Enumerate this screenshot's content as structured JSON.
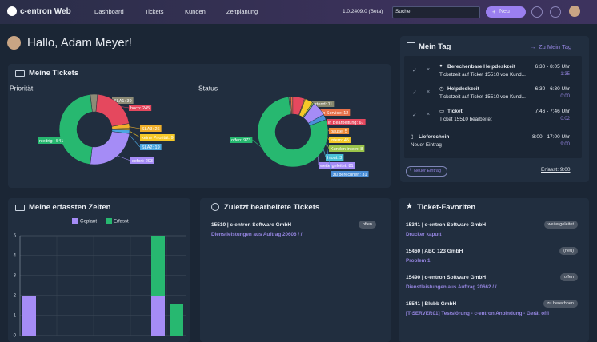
{
  "nav": {
    "brand": "c-entron Web",
    "items": [
      "Dashboard",
      "Tickets",
      "Kunden",
      "Zeitplanung"
    ],
    "version": "1.0.2409.0 (Beta)",
    "search": "Suche",
    "new_button": "Neu"
  },
  "greeting": "Hallo, Adam Meyer!",
  "tickets_panel": {
    "title": "Meine Tickets"
  },
  "times_panel": {
    "title": "Meine erfassten Zeiten"
  },
  "chart_data": [
    {
      "type": "donut",
      "title": "Priorität",
      "categories": [
        "SLA1",
        "hoch",
        "SLA3",
        "keine Priorität",
        "SLA2",
        "sofort",
        "niedrig"
      ],
      "values": [
        39,
        245,
        26,
        9,
        19,
        293,
        541
      ],
      "value_labels": [
        "SLA1: 39",
        "hoch: 245",
        "SLA3: 26",
        "keine Priorität: 9",
        "SLA2: 19",
        "sofort: 293",
        "niedrig : 541"
      ],
      "colors": [
        "#8d8b76",
        "#e5485e",
        "#f0b02c",
        "#f5c928",
        "#4aa6e0",
        "#a58cf6",
        "#27b870"
      ]
    },
    {
      "type": "donut",
      "title": "Status",
      "categories": [
        "wartend",
        "in Service",
        "in Bearbeitung",
        "pause",
        "intern",
        "Kunden intern",
        "Inout",
        "weitergeleitet",
        "zu berechnen",
        "offen"
      ],
      "values": [
        11,
        12,
        67,
        5,
        45,
        8,
        3,
        81,
        31,
        973
      ],
      "value_labels": [
        "wartend: 11",
        "in Service: 12",
        "in Bearbeitung: 67",
        "pause: 5",
        "intern: 45",
        "Kunden intern: 8",
        "Inout: 3",
        "weitergeleitet: 81",
        "zu berechnen: 31",
        "offen: 973"
      ],
      "colors": [
        "#87876c",
        "#e8714a",
        "#e5485e",
        "#f08c3a",
        "#f5c928",
        "#9bc44a",
        "#4ac2d8",
        "#a58cf6",
        "#4a8fd8",
        "#27b870"
      ]
    },
    {
      "type": "bar",
      "stacked": true,
      "categories": [
        null,
        null,
        null,
        null,
        null,
        null,
        null,
        null,
        null
      ],
      "series": [
        {
          "name": "Geplant",
          "color": "#a58cf6",
          "values": [
            2,
            null,
            null,
            null,
            null,
            null,
            null,
            2,
            null
          ]
        },
        {
          "name": "Erfasst",
          "color": "#27b870",
          "values": [
            null,
            null,
            null,
            null,
            null,
            null,
            null,
            3,
            1.6
          ]
        }
      ],
      "ylim": [
        0,
        5
      ],
      "yticks": [
        0,
        1,
        2,
        3,
        4,
        5
      ],
      "grid": true
    }
  ],
  "my_day": {
    "title": "Mein Tag",
    "link": "Zu Mein Tag",
    "entries": [
      {
        "title": "Berechenbare Helpdeskzeit",
        "text": "Ticketzeit auf Ticket 15510 von Kund...",
        "time": "6:30 - 8:05 Uhr",
        "duration": "1:35"
      },
      {
        "title": "Helpdeskzeit",
        "text": "Ticketzeit auf Ticket 15510 von Kund...",
        "time": "6:30 - 6:30 Uhr",
        "duration": "0:00"
      },
      {
        "title": "Ticket",
        "text": "Ticket 15510 bearbeitet",
        "time": "7:46 - 7:46 Uhr",
        "duration": "0:02"
      },
      {
        "title": "Lieferschein",
        "text": "Neuer Eintrag",
        "time": "8:00 - 17:00 Uhr",
        "duration": "9:00"
      }
    ],
    "new_entry": "Neuer Eintrag",
    "total": "Erfasst: 9:00"
  },
  "recent": {
    "title": "Zuletzt bearbeitete Tickets",
    "items": [
      {
        "title": "15510 | c-entron Software GmbH",
        "text": "Dienstleistungen aus Auftrag 20606 / /",
        "status": "offen"
      }
    ]
  },
  "favorites": {
    "title": "Ticket-Favoriten",
    "items": [
      {
        "title": "15341 | c-entron Software GmbH",
        "text": "Drucker kaputt",
        "status": "weitergeleitet"
      },
      {
        "title": "15460 | ABC 123 GmbH",
        "text": "Problem 1",
        "status": "(neu)"
      },
      {
        "title": "15490 | c-entron Software GmbH",
        "text": "Dienstleistungen aus Auftrag 20662 / /",
        "status": "offen"
      },
      {
        "title": "15541 | Blubb GmbH",
        "text": "[T-SERVER01] Testslörung - c-entron Anbindung - Gerät offl",
        "status": "zu berechnen"
      }
    ]
  }
}
